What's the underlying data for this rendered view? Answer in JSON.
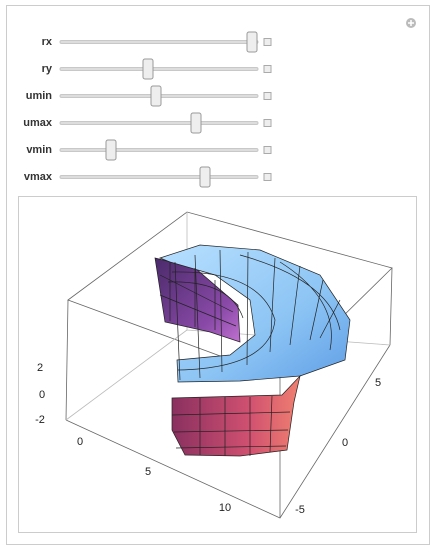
{
  "controls": [
    {
      "label": "rx"
    },
    {
      "label": "ry"
    },
    {
      "label": "umin"
    },
    {
      "label": "umax"
    },
    {
      "label": "vmin"
    },
    {
      "label": "vmax"
    }
  ],
  "plot": {
    "z_ticks": [
      "2",
      "0",
      "-2"
    ],
    "x_ticks": [
      "0",
      "5",
      "10"
    ],
    "y_ticks": [
      "5",
      "0",
      "-5"
    ]
  }
}
